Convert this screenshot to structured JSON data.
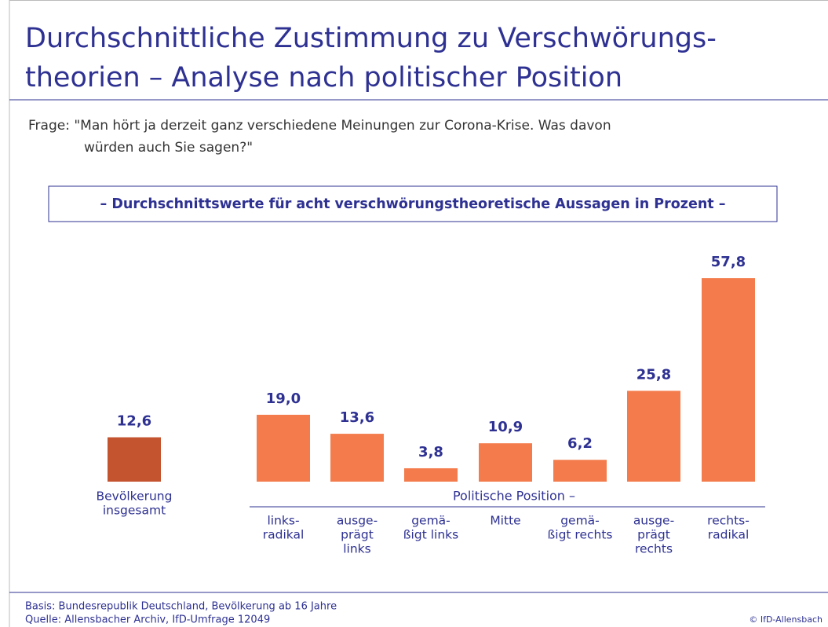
{
  "chart_data": {
    "type": "bar",
    "title": [
      "Durchschnittliche Zustimmung zu Verschwörungs-",
      "theorien – Analyse nach politischer Position"
    ],
    "question": [
      "Frage:  \"Man hört ja derzeit ganz verschiedene Meinungen zur Corona-Krise. Was davon",
      "würden auch Sie sagen?\""
    ],
    "subtitle": "– Durchschnittswerte für acht verschwörungstheoretische Aussagen in Prozent –",
    "group_label": "Politische Position –",
    "categories": [
      [
        "Bevölkerung",
        "insgesamt"
      ],
      [
        "links-",
        "radikal"
      ],
      [
        "ausge-",
        "prägt",
        "links"
      ],
      [
        "gemä-",
        "ßigt links"
      ],
      [
        "Mitte"
      ],
      [
        "gemä-",
        "ßigt rechts"
      ],
      [
        "ausge-",
        "prägt",
        "rechts"
      ],
      [
        "rechts-",
        "radikal"
      ]
    ],
    "values": [
      12.6,
      19.0,
      13.6,
      3.8,
      10.9,
      6.2,
      25.8,
      57.8
    ],
    "value_labels": [
      "12,6",
      "19,0",
      "13,6",
      "3,8",
      "10,9",
      "6,2",
      "25,8",
      "57,8"
    ],
    "colors": [
      "#c4532f",
      "#f47c4c",
      "#f47c4c",
      "#f47c4c",
      "#f47c4c",
      "#f47c4c",
      "#f47c4c",
      "#f47c4c"
    ],
    "footer": [
      "Basis: Bundesrepublik Deutschland, Bevölkerung ab 16 Jahre",
      "Quelle: Allensbacher Archiv, IfD-Umfrage 12049"
    ],
    "copyright": "© IfD-Allensbach"
  }
}
